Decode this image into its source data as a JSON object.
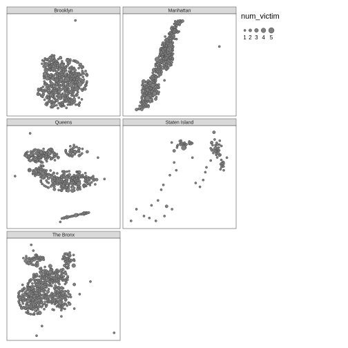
{
  "chart_data": {
    "type": "scatter",
    "facet_by": "borough",
    "size_encodes": "num_victim",
    "colors": {
      "point_fill": "#808080",
      "point_stroke": "#4d4d4d",
      "strip_fill": "#d9d9d9",
      "panel_border": "#4d4d4d"
    },
    "grid": false,
    "legend": {
      "title": "num_victim",
      "placement": "right",
      "entries": [
        {
          "label": "1",
          "value": 1
        },
        {
          "label": "2",
          "value": 2
        },
        {
          "label": "3",
          "value": 3
        },
        {
          "label": "4",
          "value": 4
        },
        {
          "label": "5",
          "value": 5
        }
      ]
    },
    "facets": [
      {
        "name": "Brooklyn",
        "xlim": [
          0,
          1
        ],
        "ylim": [
          0,
          1
        ],
        "clusters": [
          {
            "cx": 0.52,
            "cy": 0.36,
            "rx": 0.2,
            "ry": 0.2,
            "n": 420
          },
          {
            "cx": 0.5,
            "cy": 0.12,
            "rx": 0.18,
            "ry": 0.07,
            "n": 90
          },
          {
            "cx": 0.4,
            "cy": 0.52,
            "rx": 0.1,
            "ry": 0.08,
            "n": 60
          },
          {
            "cx": 0.36,
            "cy": 0.22,
            "rx": 0.1,
            "ry": 0.09,
            "n": 60
          }
        ],
        "points": [
          {
            "x": 0.61,
            "y": 0.96,
            "size": 1
          },
          {
            "x": 0.3,
            "y": 0.18,
            "size": 1
          },
          {
            "x": 0.7,
            "y": 0.25,
            "size": 2
          }
        ]
      },
      {
        "name": "Manhattan",
        "xlim": [
          0,
          1
        ],
        "ylim": [
          0,
          1
        ],
        "segments": [
          {
            "x0": 0.15,
            "y0": 0.05,
            "x1": 0.49,
            "y1": 0.96,
            "width": 0.05,
            "n": 360
          }
        ],
        "clusters": [
          {
            "cx": 0.38,
            "cy": 0.6,
            "rx": 0.06,
            "ry": 0.15,
            "n": 180
          },
          {
            "cx": 0.23,
            "cy": 0.25,
            "rx": 0.08,
            "ry": 0.13,
            "n": 120
          }
        ],
        "points": [
          {
            "x": 0.87,
            "y": 0.69,
            "size": 1
          },
          {
            "x": 0.15,
            "y": 0.04,
            "size": 2
          },
          {
            "x": 0.36,
            "y": 0.34,
            "size": 1
          }
        ]
      },
      {
        "name": "Queens",
        "xlim": [
          0,
          1
        ],
        "ylim": [
          0,
          1
        ],
        "clusters": [
          {
            "cx": 0.3,
            "cy": 0.72,
            "rx": 0.16,
            "ry": 0.07,
            "n": 140
          },
          {
            "cx": 0.55,
            "cy": 0.46,
            "rx": 0.26,
            "ry": 0.1,
            "n": 240
          },
          {
            "cx": 0.28,
            "cy": 0.56,
            "rx": 0.1,
            "ry": 0.06,
            "n": 60
          },
          {
            "cx": 0.6,
            "cy": 0.77,
            "rx": 0.08,
            "ry": 0.06,
            "n": 40
          }
        ],
        "segments": [
          {
            "x0": 0.5,
            "y0": 0.08,
            "x1": 0.75,
            "y1": 0.14,
            "width": 0.03,
            "n": 45
          }
        ],
        "points": [
          {
            "x": 0.19,
            "y": 0.95,
            "size": 1
          },
          {
            "x": 0.82,
            "y": 0.7,
            "size": 1
          },
          {
            "x": 0.88,
            "y": 0.48,
            "size": 1
          },
          {
            "x": 0.47,
            "y": 0.04,
            "size": 1
          },
          {
            "x": 0.05,
            "y": 0.51,
            "size": 1
          },
          {
            "x": 0.72,
            "y": 0.76,
            "size": 2
          }
        ]
      },
      {
        "name": "Staten Island",
        "xlim": [
          0,
          1
        ],
        "ylim": [
          0,
          1
        ],
        "clusters": [
          {
            "cx": 0.52,
            "cy": 0.84,
            "rx": 0.1,
            "ry": 0.04,
            "n": 30
          },
          {
            "cx": 0.84,
            "cy": 0.8,
            "rx": 0.05,
            "ry": 0.1,
            "n": 35
          },
          {
            "cx": 0.9,
            "cy": 0.64,
            "rx": 0.03,
            "ry": 0.04,
            "n": 10
          }
        ],
        "points": [
          {
            "x": 0.05,
            "y": 0.05,
            "size": 1
          },
          {
            "x": 0.1,
            "y": 0.17,
            "size": 1
          },
          {
            "x": 0.17,
            "y": 0.1,
            "size": 1
          },
          {
            "x": 0.22,
            "y": 0.08,
            "size": 1
          },
          {
            "x": 0.28,
            "y": 0.05,
            "size": 1
          },
          {
            "x": 0.24,
            "y": 0.21,
            "size": 1
          },
          {
            "x": 0.3,
            "y": 0.26,
            "size": 1
          },
          {
            "x": 0.38,
            "y": 0.2,
            "size": 2
          },
          {
            "x": 0.43,
            "y": 0.17,
            "size": 1
          },
          {
            "x": 0.36,
            "y": 0.1,
            "size": 1
          },
          {
            "x": 0.33,
            "y": 0.37,
            "size": 1
          },
          {
            "x": 0.35,
            "y": 0.42,
            "size": 1
          },
          {
            "x": 0.41,
            "y": 0.52,
            "size": 1
          },
          {
            "x": 0.47,
            "y": 0.57,
            "size": 1
          },
          {
            "x": 0.45,
            "y": 0.65,
            "size": 1
          },
          {
            "x": 0.45,
            "y": 0.77,
            "size": 2
          },
          {
            "x": 0.65,
            "y": 0.44,
            "size": 1
          },
          {
            "x": 0.69,
            "y": 0.4,
            "size": 1
          },
          {
            "x": 0.72,
            "y": 0.47,
            "size": 1
          },
          {
            "x": 0.74,
            "y": 0.55,
            "size": 1
          },
          {
            "x": 0.75,
            "y": 0.6,
            "size": 1
          },
          {
            "x": 0.62,
            "y": 0.7,
            "size": 1
          },
          {
            "x": 0.79,
            "y": 0.67,
            "size": 1
          },
          {
            "x": 0.88,
            "y": 0.58,
            "size": 1
          },
          {
            "x": 0.91,
            "y": 0.57,
            "size": 1
          },
          {
            "x": 0.94,
            "y": 0.7,
            "size": 1
          },
          {
            "x": 0.82,
            "y": 0.96,
            "size": 2
          }
        ]
      },
      {
        "name": "The Bronx",
        "xlim": [
          0,
          1
        ],
        "ylim": [
          0,
          1
        ],
        "clusters": [
          {
            "cx": 0.22,
            "cy": 0.42,
            "rx": 0.14,
            "ry": 0.18,
            "n": 280
          },
          {
            "cx": 0.38,
            "cy": 0.62,
            "rx": 0.16,
            "ry": 0.12,
            "n": 180
          },
          {
            "cx": 0.45,
            "cy": 0.4,
            "rx": 0.12,
            "ry": 0.12,
            "n": 120
          },
          {
            "cx": 0.22,
            "cy": 0.8,
            "rx": 0.1,
            "ry": 0.06,
            "n": 50
          },
          {
            "cx": 0.55,
            "cy": 0.8,
            "rx": 0.06,
            "ry": 0.08,
            "n": 40
          }
        ],
        "points": [
          {
            "x": 0.2,
            "y": 0.96,
            "size": 1
          },
          {
            "x": 0.22,
            "y": 0.9,
            "size": 1
          },
          {
            "x": 0.97,
            "y": 0.05,
            "size": 1
          },
          {
            "x": 0.25,
            "y": 0.02,
            "size": 1
          },
          {
            "x": 0.3,
            "y": 0.12,
            "size": 1
          },
          {
            "x": 0.48,
            "y": 0.22,
            "size": 1
          },
          {
            "x": 0.6,
            "y": 0.3,
            "size": 1
          },
          {
            "x": 0.65,
            "y": 0.45,
            "size": 1
          },
          {
            "x": 0.75,
            "y": 0.58,
            "size": 1
          },
          {
            "x": 0.6,
            "y": 0.55,
            "size": 2
          }
        ]
      }
    ]
  }
}
